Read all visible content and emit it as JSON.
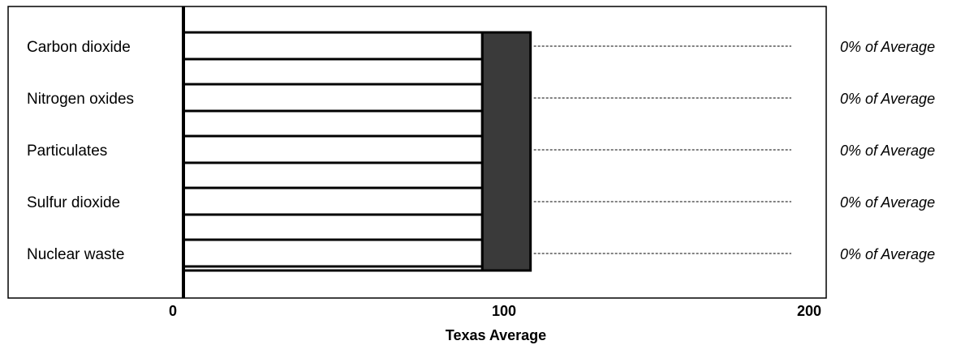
{
  "chart_data": {
    "type": "bar",
    "orientation": "horizontal",
    "xlabel": "Texas Average",
    "xlim": [
      0,
      200
    ],
    "x_ticks": [
      "0",
      "100",
      "200"
    ],
    "categories": [
      "Carbon dioxide",
      "Nitrogen oxides",
      "Particulates",
      "Sulfur dioxide",
      "Nuclear waste"
    ],
    "annotations": [
      "0% of Average",
      "0% of Average",
      "0% of Average",
      "0% of Average",
      "0% of Average"
    ],
    "values": [
      0,
      0,
      0,
      0,
      0
    ],
    "average_band": {
      "from": 0,
      "to": 93
    },
    "reference_band": {
      "from": 93,
      "to": 108
    },
    "colors": {
      "reference_band": "#3a3a3a",
      "average_band": "#ffffff",
      "border": "#000000"
    },
    "grid": false,
    "legend": "none"
  }
}
